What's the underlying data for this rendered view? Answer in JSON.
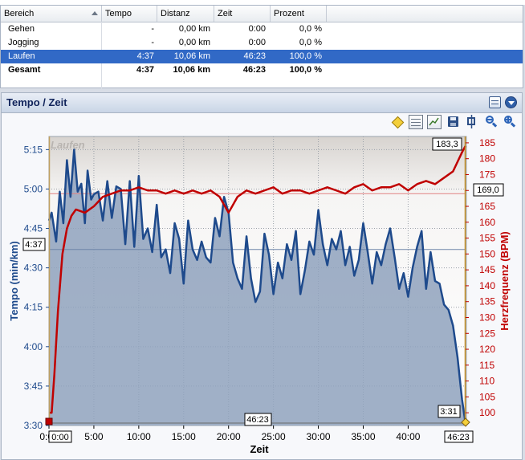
{
  "table": {
    "columns": [
      "Bereich",
      "Tempo",
      "Distanz",
      "Zeit",
      "Prozent"
    ],
    "rows": [
      {
        "bereich": "Gehen",
        "tempo": "-",
        "distanz": "0,00 km",
        "zeit": "0:00",
        "prozent": "0,0 %"
      },
      {
        "bereich": "Jogging",
        "tempo": "-",
        "distanz": "0,00 km",
        "zeit": "0:00",
        "prozent": "0,0 %"
      },
      {
        "bereich": "Laufen",
        "tempo": "4:37",
        "distanz": "10,06 km",
        "zeit": "46:23",
        "prozent": "100,0 %"
      },
      {
        "bereich": "Gesamt",
        "tempo": "4:37",
        "distanz": "10,06 km",
        "zeit": "46:23",
        "prozent": "100,0 %"
      }
    ]
  },
  "panel": {
    "title": "Tempo / Zeit"
  },
  "toolbar": {
    "icons": [
      "diamond-marker-icon",
      "table-icon",
      "chart-edit-icon",
      "save-icon",
      "fit-icon",
      "zoom-out-icon",
      "zoom-in-icon"
    ]
  },
  "colors": {
    "pace": "#1e4a8c",
    "pace_fill": "#8fa2bd",
    "heart": "#c00000",
    "selection": "#3169c6"
  },
  "chart_data": {
    "type": "line",
    "title": "",
    "watermark": "Laufen",
    "xlabel": "Zeit",
    "ylabel_left": "Tempo (min/km)",
    "ylabel_right": "Herzfrequenz (BPM)",
    "x_ticks": [
      "0:00",
      "5:00",
      "10:00",
      "15:00",
      "20:00",
      "25:00",
      "30:00",
      "35:00",
      "40:00"
    ],
    "y_left_ticks": [
      "5:15",
      "5:00",
      "4:45",
      "4:30",
      "4:15",
      "4:00",
      "3:45",
      "3:30"
    ],
    "y_right_ticks": [
      "185",
      "180",
      "175",
      "170",
      "165",
      "160",
      "155",
      "150",
      "145",
      "140",
      "135",
      "130",
      "125",
      "120",
      "115",
      "110",
      "105",
      "100"
    ],
    "xlim_min": [
      0,
      46.4
    ],
    "ylim_left_sec": [
      210,
      320
    ],
    "ylim_right_bpm": [
      96,
      187
    ],
    "grid": true,
    "avg_pace_label": "4:37",
    "avg_pace_sec": 277,
    "avg_hr_label": "169,0",
    "avg_hr": 169.0,
    "max_hr_label": "183,3",
    "max_hr": 183.3,
    "min_pace_label": "3:31",
    "start_label": "0:00",
    "end_label": "46:23",
    "duration_label": "46:23",
    "series": [
      {
        "name": "Tempo",
        "unit": "min/km (seconds)",
        "x": [
          0,
          0.3,
          0.8,
          1.2,
          1.6,
          2,
          2.4,
          2.8,
          3.2,
          3.6,
          4,
          4.3,
          4.7,
          5,
          5.5,
          6,
          6.5,
          7,
          7.5,
          8,
          8.5,
          9,
          9.5,
          10,
          10.5,
          11,
          11.5,
          12,
          12.5,
          13,
          13.5,
          14,
          14.5,
          15,
          15.5,
          16,
          16.5,
          17,
          17.5,
          18,
          18.5,
          19,
          19.5,
          20,
          20.5,
          21,
          21.5,
          22,
          22.5,
          23,
          23.5,
          24,
          24.5,
          25,
          25.5,
          26,
          26.5,
          27,
          27.5,
          28,
          28.5,
          29,
          29.5,
          30,
          30.5,
          31,
          31.5,
          32,
          32.5,
          33,
          33.5,
          34,
          34.5,
          35,
          35.5,
          36,
          36.5,
          37,
          37.5,
          38,
          38.5,
          39,
          39.5,
          40,
          40.5,
          41,
          41.5,
          42,
          42.5,
          43,
          43.5,
          44,
          44.5,
          45,
          45.5,
          46,
          46.38
        ],
        "values": [
          288,
          291,
          280,
          299,
          287,
          311,
          297,
          315,
          299,
          302,
          287,
          307,
          296,
          298,
          299,
          288,
          303,
          289,
          301,
          300,
          279,
          303,
          278,
          305,
          281,
          285,
          276,
          294,
          274,
          277,
          268,
          287,
          281,
          264,
          288,
          277,
          273,
          280,
          274,
          272,
          289,
          282,
          297,
          291,
          272,
          266,
          262,
          282,
          266,
          257,
          261,
          283,
          275,
          260,
          272,
          266,
          279,
          273,
          284,
          260,
          269,
          280,
          275,
          292,
          279,
          271,
          281,
          277,
          284,
          271,
          278,
          267,
          273,
          287,
          276,
          264,
          276,
          271,
          279,
          285,
          274,
          262,
          268,
          259,
          270,
          278,
          284,
          262,
          276,
          265,
          264,
          256,
          254,
          248,
          236,
          220,
          211
        ]
      },
      {
        "name": "Herzfrequenz",
        "unit": "BPM",
        "x": [
          0,
          0.3,
          0.6,
          1,
          1.5,
          2,
          2.5,
          3,
          4,
          5,
          6,
          7,
          8,
          9,
          10,
          11,
          12,
          13,
          14,
          15,
          16,
          17,
          18,
          19,
          20,
          21,
          22,
          23,
          24,
          25,
          26,
          27,
          28,
          29,
          30,
          31,
          32,
          33,
          34,
          35,
          36,
          37,
          38,
          39,
          40,
          41,
          42,
          43,
          44,
          45,
          45.5,
          46,
          46.38
        ],
        "values": [
          100,
          100,
          112,
          132,
          150,
          158,
          162,
          164,
          163,
          165,
          168,
          169,
          170,
          170,
          171,
          170,
          170,
          169,
          170,
          169,
          170,
          169,
          170,
          168,
          163,
          168,
          170,
          169,
          170,
          171,
          169,
          170,
          170,
          169,
          170,
          171,
          170,
          169,
          171,
          172,
          170,
          171,
          171,
          172,
          170,
          172,
          173,
          172,
          174,
          176,
          179,
          182,
          184
        ]
      }
    ]
  }
}
